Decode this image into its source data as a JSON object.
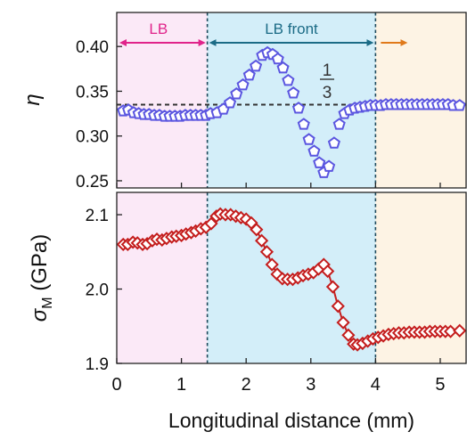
{
  "colors": {
    "region_lb": "#fbe9f7",
    "region_front": "#d3eef9",
    "region_after": "#fdf3e4",
    "arrow_lb": "#e0238a",
    "arrow_front": "#1b6b86",
    "arrow_after": "#e0791a",
    "eta_series": "#5b56e0",
    "sigma_series": "#c41d1d",
    "axis": "#222222",
    "dashed": "#333333"
  },
  "chart_data": [
    {
      "type": "scatter",
      "panel": "top",
      "ylabel": "η",
      "ylim": [
        0.242,
        0.438
      ],
      "yticks": [
        0.25,
        0.3,
        0.35,
        0.4
      ],
      "ytick_labels": [
        "0.25",
        "0.30",
        "0.35",
        "0.40"
      ],
      "xlim": [
        0,
        5.4
      ],
      "region_boundaries": [
        1.4,
        4.0
      ],
      "region_labels": [
        "LB",
        "LB front",
        ""
      ],
      "reference_line": {
        "y": 0.335,
        "label_num": "1",
        "label_den": "3"
      },
      "marker": "pentagon",
      "series": [
        {
          "x": [
            0.1,
            0.18,
            0.26,
            0.34,
            0.42,
            0.5,
            0.58,
            0.66,
            0.74,
            0.82,
            0.9,
            0.98,
            1.06,
            1.14,
            1.22,
            1.3,
            1.38,
            1.45,
            1.55,
            1.65,
            1.75,
            1.85,
            1.95,
            2.05,
            2.15,
            2.25,
            2.33,
            2.41,
            2.49,
            2.57,
            2.65,
            2.73,
            2.81,
            2.89,
            2.97,
            3.05,
            3.13,
            3.2,
            3.28,
            3.36,
            3.44,
            3.52,
            3.6,
            3.68,
            3.76,
            3.84,
            3.92,
            4.0,
            4.08,
            4.16,
            4.24,
            4.32,
            4.4,
            4.48,
            4.56,
            4.64,
            4.72,
            4.8,
            4.88,
            4.96,
            5.04,
            5.12,
            5.2,
            5.3
          ],
          "y": [
            0.328,
            0.329,
            0.326,
            0.325,
            0.324,
            0.324,
            0.323,
            0.323,
            0.322,
            0.322,
            0.322,
            0.322,
            0.323,
            0.323,
            0.323,
            0.323,
            0.323,
            0.325,
            0.326,
            0.33,
            0.337,
            0.347,
            0.357,
            0.368,
            0.378,
            0.39,
            0.393,
            0.391,
            0.386,
            0.376,
            0.362,
            0.348,
            0.331,
            0.313,
            0.296,
            0.283,
            0.27,
            0.259,
            0.266,
            0.292,
            0.313,
            0.325,
            0.329,
            0.331,
            0.332,
            0.333,
            0.334,
            0.334,
            0.334,
            0.335,
            0.335,
            0.335,
            0.335,
            0.335,
            0.335,
            0.335,
            0.335,
            0.335,
            0.335,
            0.335,
            0.335,
            0.335,
            0.334,
            0.334
          ]
        }
      ]
    },
    {
      "type": "line",
      "panel": "bottom",
      "ylabel": "σ",
      "ylabel_sub": "M",
      "ylabel_unit": " (GPa)",
      "xlabel": "Longitudinal distance (mm)",
      "ylim": [
        1.9,
        2.13
      ],
      "yticks": [
        1.9,
        2.0,
        2.1
      ],
      "ytick_labels": [
        "1.9",
        "2.0",
        "2.1"
      ],
      "xlim": [
        0,
        5.4
      ],
      "xticks": [
        0,
        1,
        2,
        3,
        4,
        5
      ],
      "xtick_labels": [
        "0",
        "1",
        "2",
        "3",
        "4",
        "5"
      ],
      "marker": "diamond",
      "series": [
        {
          "x": [
            0.1,
            0.17,
            0.25,
            0.32,
            0.4,
            0.47,
            0.55,
            0.62,
            0.7,
            0.77,
            0.85,
            0.92,
            1.0,
            1.07,
            1.15,
            1.22,
            1.3,
            1.38,
            1.46,
            1.54,
            1.6,
            1.68,
            1.76,
            1.84,
            1.92,
            2.0,
            2.08,
            2.16,
            2.24,
            2.32,
            2.4,
            2.48,
            2.56,
            2.64,
            2.72,
            2.8,
            2.88,
            2.96,
            3.04,
            3.12,
            3.2,
            3.26,
            3.34,
            3.42,
            3.5,
            3.58,
            3.66,
            3.72,
            3.8,
            3.88,
            3.96,
            4.04,
            4.12,
            4.2,
            4.28,
            4.36,
            4.44,
            4.52,
            4.6,
            4.68,
            4.76,
            4.84,
            4.92,
            5.0,
            5.08,
            5.16,
            5.3
          ],
          "y": [
            2.06,
            2.06,
            2.063,
            2.062,
            2.06,
            2.061,
            2.065,
            2.067,
            2.066,
            2.068,
            2.07,
            2.071,
            2.072,
            2.074,
            2.076,
            2.078,
            2.081,
            2.083,
            2.088,
            2.098,
            2.101,
            2.1,
            2.1,
            2.098,
            2.096,
            2.094,
            2.089,
            2.08,
            2.065,
            2.05,
            2.033,
            2.02,
            2.014,
            2.013,
            2.013,
            2.015,
            2.018,
            2.02,
            2.022,
            2.027,
            2.033,
            2.024,
            2.003,
            1.977,
            1.955,
            1.938,
            1.926,
            1.925,
            1.927,
            1.93,
            1.933,
            1.935,
            1.937,
            1.939,
            1.94,
            1.941,
            1.941,
            1.942,
            1.942,
            1.942,
            1.942,
            1.943,
            1.943,
            1.943,
            1.943,
            1.943,
            1.944
          ]
        }
      ]
    }
  ]
}
